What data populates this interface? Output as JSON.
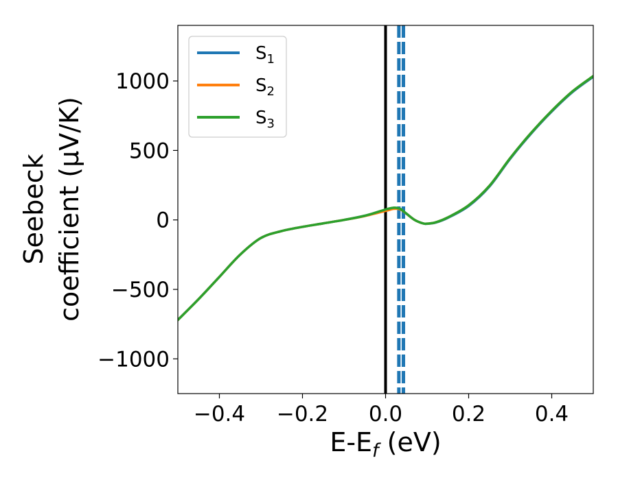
{
  "chart_data": {
    "type": "line",
    "xlabel": {
      "main": "E-E",
      "sub": "f",
      "rest": " (eV)"
    },
    "ylabel": {
      "line1": "Seebeck",
      "line2": "coefficient  (μV/K)"
    },
    "xlim": [
      -0.5,
      0.5
    ],
    "ylim": [
      -1250,
      1400
    ],
    "xticks": [
      -0.4,
      -0.2,
      0.0,
      0.2,
      0.4
    ],
    "xtick_labels": [
      "−0.4",
      "−0.2",
      "0.0",
      "0.2",
      "0.4"
    ],
    "yticks": [
      -1000,
      -500,
      0,
      500,
      1000
    ],
    "ytick_labels": [
      "−1000",
      "−500",
      "0",
      "500",
      "1000"
    ],
    "grid": false,
    "legend_position": "upper-left",
    "fermi_line": {
      "x": 0.0,
      "color": "#000000"
    },
    "dashed_lines": [
      {
        "x": 0.032,
        "color": "#1f77b4"
      },
      {
        "x": 0.043,
        "color": "#1f77b4"
      }
    ],
    "series": [
      {
        "name": "S",
        "sub": "1",
        "color": "#1f77b4",
        "x": [
          -0.5,
          -0.45,
          -0.4,
          -0.35,
          -0.3,
          -0.25,
          -0.2,
          -0.15,
          -0.1,
          -0.05,
          0.0,
          0.02,
          0.035,
          0.05,
          0.07,
          0.09,
          0.1,
          0.12,
          0.15,
          0.2,
          0.25,
          0.3,
          0.35,
          0.4,
          0.45,
          0.5
        ],
        "y": [
          -720,
          -570,
          -410,
          -250,
          -130,
          -80,
          -50,
          -25,
          0,
          30,
          70,
          85,
          78,
          45,
          0,
          -25,
          -28,
          -20,
          15,
          100,
          240,
          440,
          620,
          780,
          920,
          1030
        ]
      },
      {
        "name": "S",
        "sub": "2",
        "color": "#ff7f0e",
        "x": [
          -0.5,
          -0.45,
          -0.4,
          -0.35,
          -0.3,
          -0.25,
          -0.2,
          -0.15,
          -0.1,
          -0.05,
          0.0,
          0.02,
          0.035,
          0.05,
          0.07,
          0.09,
          0.1,
          0.12,
          0.15,
          0.2,
          0.25,
          0.3,
          0.35,
          0.4,
          0.45,
          0.5
        ],
        "y": [
          -720,
          -570,
          -410,
          -250,
          -130,
          -80,
          -50,
          -25,
          0,
          28,
          65,
          80,
          76,
          45,
          0,
          -25,
          -27,
          -18,
          18,
          105,
          245,
          445,
          625,
          785,
          925,
          1035
        ]
      },
      {
        "name": "S",
        "sub": "3",
        "color": "#2ca02c",
        "x": [
          -0.5,
          -0.45,
          -0.4,
          -0.35,
          -0.3,
          -0.25,
          -0.2,
          -0.15,
          -0.1,
          -0.05,
          0.0,
          0.02,
          0.035,
          0.05,
          0.07,
          0.09,
          0.1,
          0.12,
          0.15,
          0.2,
          0.25,
          0.3,
          0.35,
          0.4,
          0.45,
          0.5
        ],
        "y": [
          -720,
          -570,
          -410,
          -250,
          -130,
          -80,
          -50,
          -25,
          0,
          30,
          75,
          88,
          80,
          46,
          0,
          -25,
          -27,
          -18,
          18,
          105,
          245,
          445,
          625,
          785,
          925,
          1035
        ]
      }
    ]
  }
}
